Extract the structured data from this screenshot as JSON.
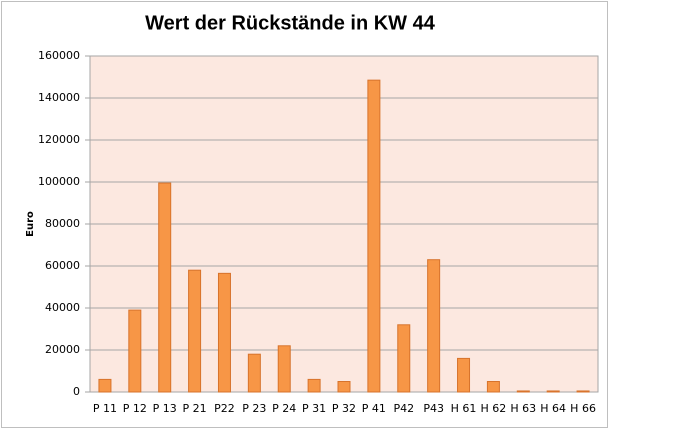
{
  "chart_data": {
    "type": "bar",
    "title": "Wert der Rückstände in KW 44",
    "y_label": "Euro",
    "categories": [
      "P 11",
      "P 12",
      "P 13",
      "P 21",
      "P22",
      "P 23",
      "P 24",
      "P 31",
      "P 32",
      "P 41",
      "P42",
      "P43",
      "H 61",
      "H 62",
      "H 63",
      "H 64",
      "H 66"
    ],
    "values": [
      6000,
      39000,
      99500,
      58000,
      56500,
      18000,
      22000,
      6000,
      5000,
      148500,
      32000,
      63000,
      16000,
      5000,
      500,
      500,
      500
    ],
    "color": "#f79646",
    "ylim": [
      0,
      160000
    ],
    "yticks": [
      0,
      20000,
      40000,
      60000,
      80000,
      100000,
      120000,
      140000,
      160000
    ],
    "grid": true
  }
}
